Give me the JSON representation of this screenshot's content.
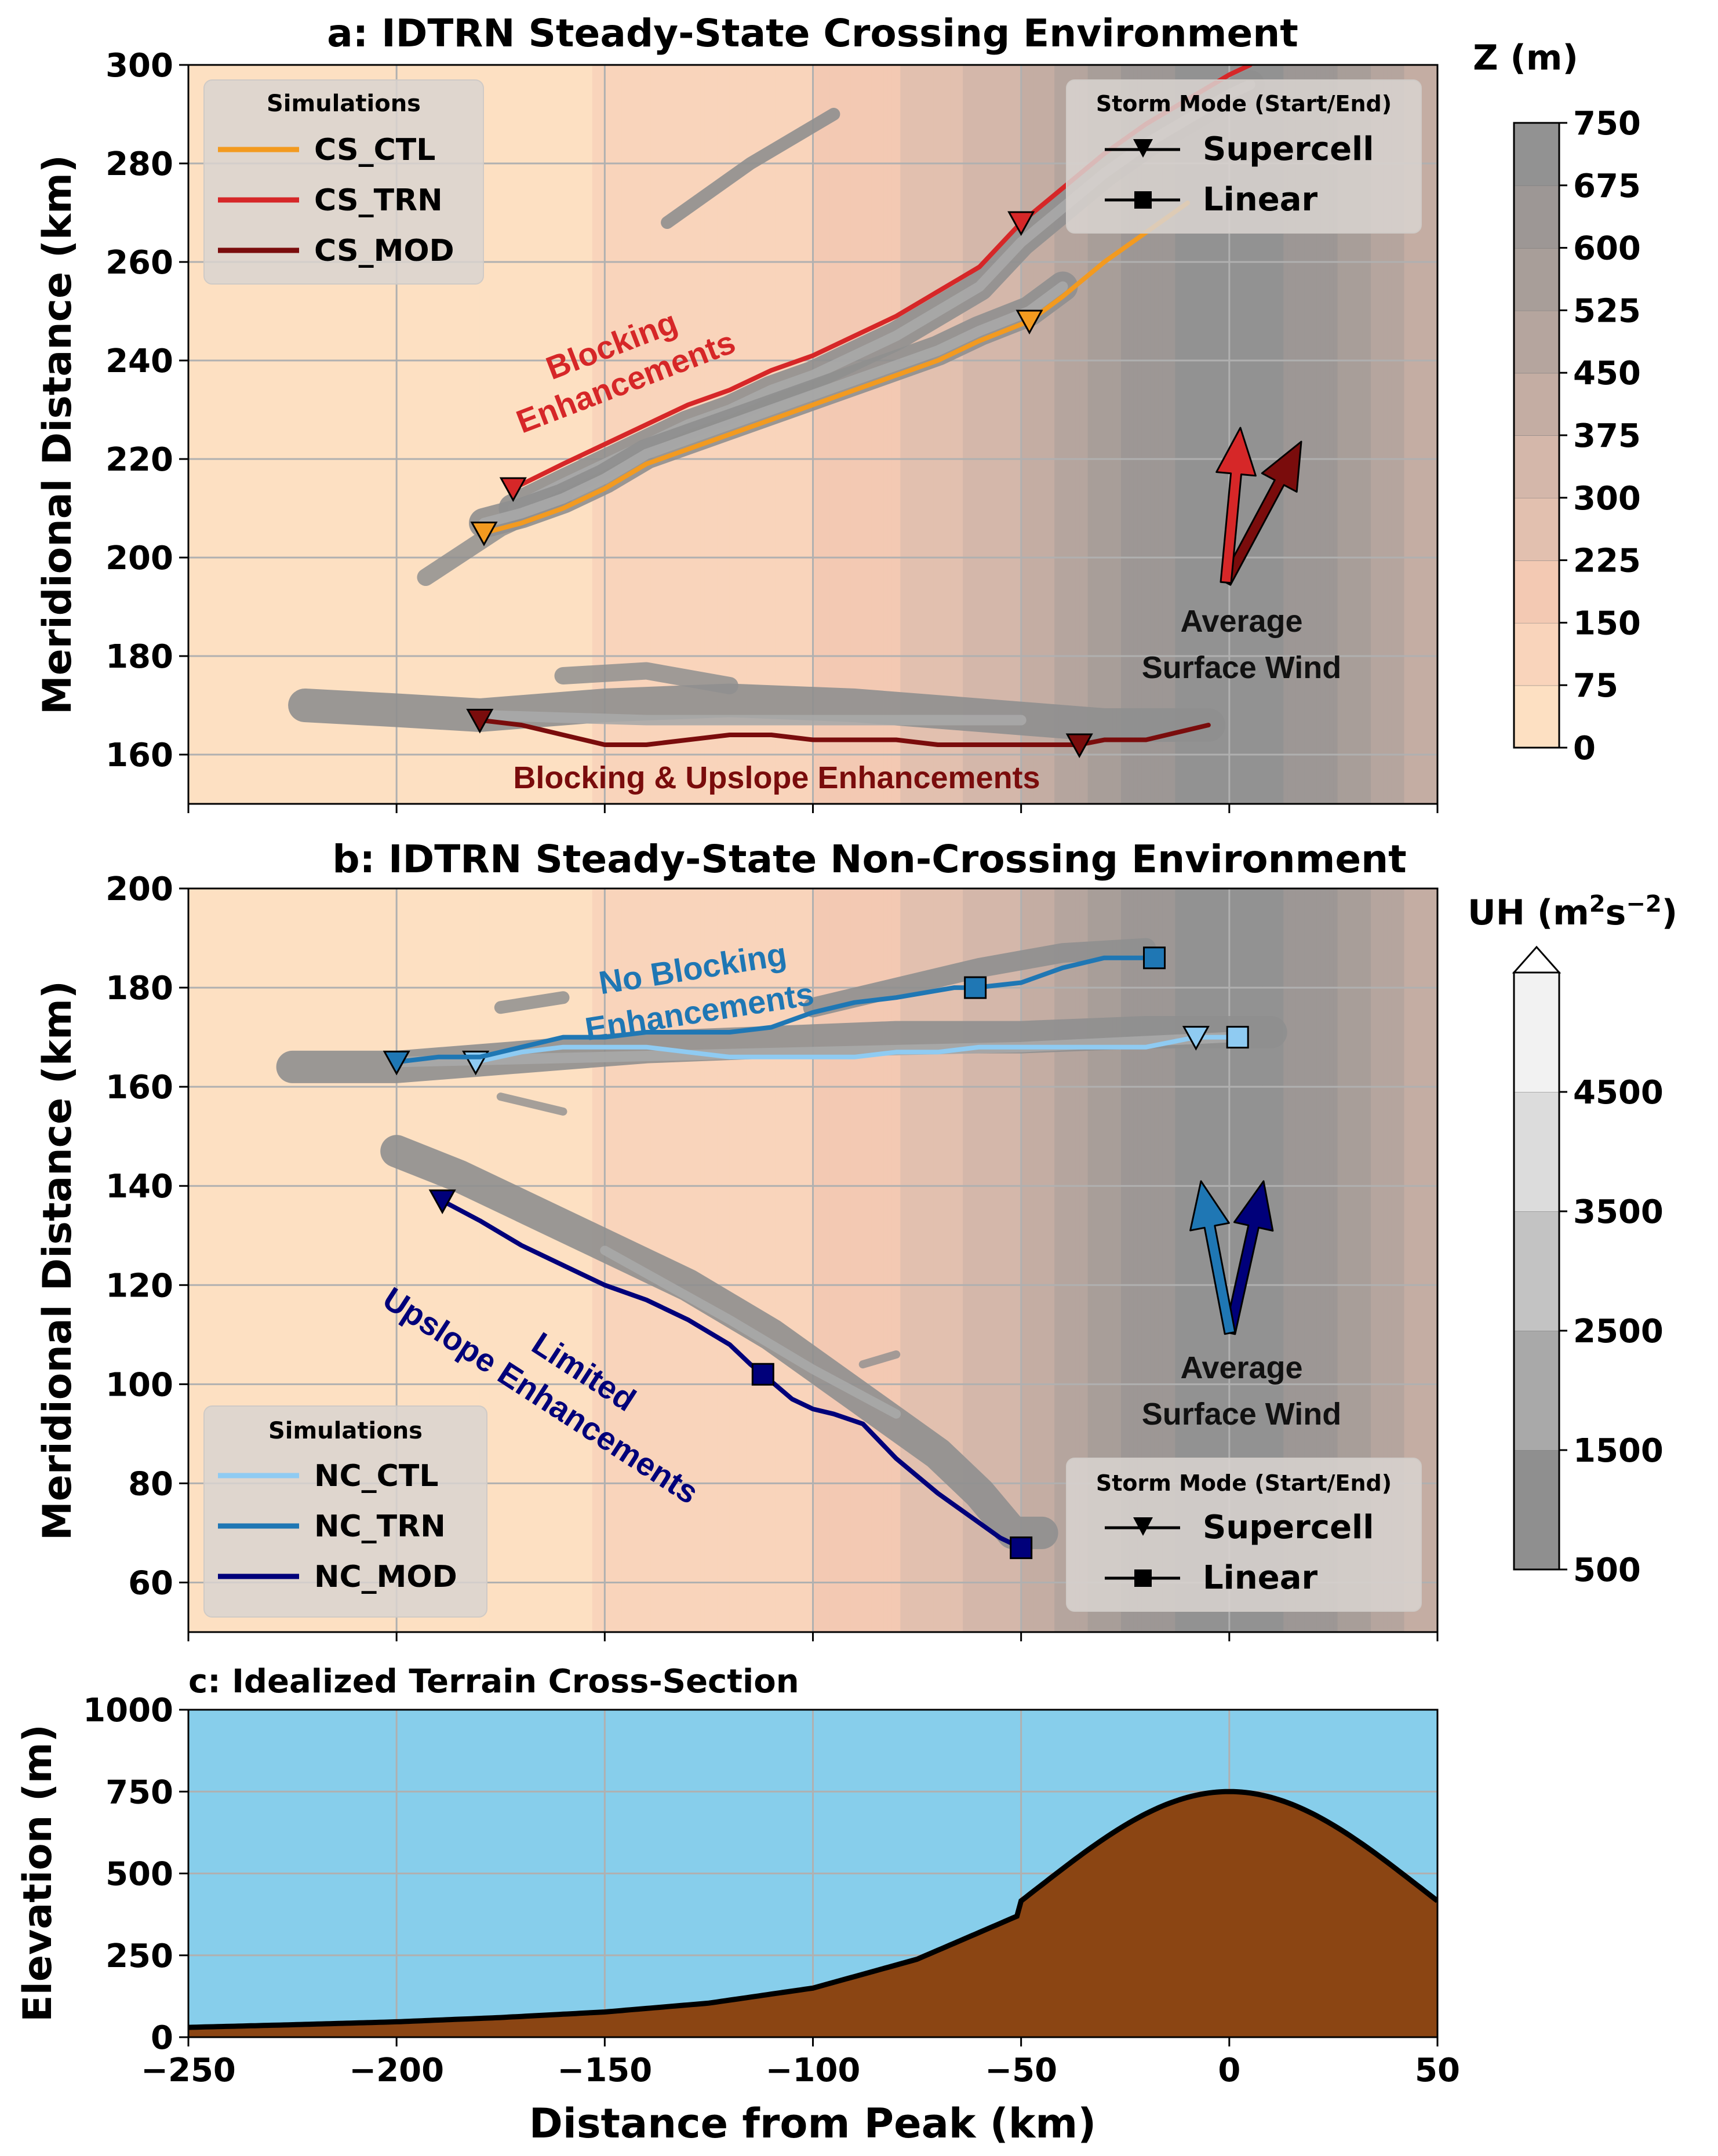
{
  "figure": {
    "xlabel": "Distance from Peak (km)",
    "xticks": [
      "−250",
      "−200",
      "−150",
      "−100",
      "−50",
      "0",
      "50"
    ]
  },
  "colors": {
    "terrain_ramp": [
      "#fde0c2",
      "#f9d4bb",
      "#f3c9b3",
      "#e2c0af",
      "#d4b7aa",
      "#c4ada3",
      "#b5a59e",
      "#a89e99",
      "#9d9795",
      "#929292"
    ],
    "uh_ramp": [
      "#8f8f8f",
      "#a9a9a9",
      "#c3c3c3",
      "#dcdcdc",
      "#f2f2f2"
    ],
    "CS_CTL": "#f39a1f",
    "CS_TRN": "#d62728",
    "CS_MOD": "#7a0c0c",
    "NC_CTL": "#8fcbf2",
    "NC_TRN": "#1f77b4",
    "NC_MOD": "#00007a",
    "sky": "#87ceeb",
    "ground": "#8b4513"
  },
  "panels": {
    "a": {
      "title": "a: IDTRN Steady-State Crossing Environment",
      "ylabel": "Meridional Distance (km)",
      "yticks": [
        "160",
        "180",
        "200",
        "220",
        "240",
        "260",
        "280",
        "300"
      ],
      "legend_sim_title": "Simulations",
      "legend_sim": [
        "CS_CTL",
        "CS_TRN",
        "CS_MOD"
      ],
      "legend_mode_title": "Storm Mode (Start/End)",
      "legend_mode": [
        "Supercell",
        "Linear"
      ],
      "wind_label_1": "Average",
      "wind_label_2": "Surface Wind",
      "annotation_blocking_1": "Blocking",
      "annotation_blocking_2": "Enhancements",
      "annotation_bottom": "Blocking & Upslope Enhancements"
    },
    "b": {
      "title": "b: IDTRN Steady-State Non-Crossing Environment",
      "ylabel": "Meridional Distance (km)",
      "yticks": [
        "60",
        "80",
        "100",
        "120",
        "140",
        "160",
        "180",
        "200"
      ],
      "legend_sim_title": "Simulations",
      "legend_sim": [
        "NC_CTL",
        "NC_TRN",
        "NC_MOD"
      ],
      "legend_mode_title": "Storm Mode (Start/End)",
      "legend_mode": [
        "Supercell",
        "Linear"
      ],
      "wind_label_1": "Average",
      "wind_label_2": "Surface Wind",
      "annotation_top_1": "No Blocking",
      "annotation_top_2": "Enhancements",
      "annotation_bottom_1": "Limited",
      "annotation_bottom_2": "Upslope Enhancements"
    },
    "c": {
      "title": "c: Idealized Terrain Cross-Section",
      "ylabel": "Elevation (m)",
      "yticks": [
        "0",
        "250",
        "500",
        "750",
        "1000"
      ]
    }
  },
  "colorbars": {
    "terrain": {
      "label": "Z (m)",
      "ticks": [
        "0",
        "75",
        "150",
        "225",
        "300",
        "375",
        "450",
        "525",
        "600",
        "675",
        "750"
      ]
    },
    "uh": {
      "label": "UH (m",
      "label_sup1": "2",
      "label_mid": "s",
      "label_sup2": "−2",
      "label_end": ")",
      "ticks": [
        "500",
        "1500",
        "2500",
        "3500",
        "4500"
      ]
    }
  },
  "chart_data": [
    {
      "type": "line",
      "title": "a: IDTRN Steady-State Crossing Environment",
      "xlabel": "Distance from Peak (km)",
      "ylabel": "Meridional Distance (km)",
      "xlim": [
        -250,
        50
      ],
      "ylim": [
        150,
        300
      ],
      "grid": true,
      "legend": "top-left",
      "background": "terrain height Z (m), 0-750",
      "series": [
        {
          "name": "CS_CTL",
          "x": [
            -179,
            -170,
            -160,
            -150,
            -140,
            -130,
            -120,
            -110,
            -100,
            -90,
            -80,
            -70,
            -60,
            -48,
            -40,
            -30,
            -20,
            -10
          ],
          "y": [
            205,
            207,
            210,
            214,
            219,
            222,
            225,
            228,
            231,
            234,
            237,
            240,
            244,
            248,
            253,
            260,
            266,
            272
          ],
          "start": {
            "mode": "Supercell",
            "x": -179,
            "y": 205
          },
          "change": {
            "mode": "Supercell",
            "x": -48,
            "y": 248
          }
        },
        {
          "name": "CS_TRN",
          "x": [
            -172,
            -160,
            -150,
            -140,
            -130,
            -120,
            -110,
            -100,
            -90,
            -80,
            -70,
            -60,
            -50,
            -40,
            -30,
            -20,
            -10,
            0,
            5
          ],
          "y": [
            214,
            219,
            223,
            227,
            231,
            234,
            238,
            241,
            245,
            249,
            254,
            259,
            268,
            275,
            282,
            288,
            293,
            298,
            300
          ],
          "start": {
            "mode": "Supercell",
            "x": -172,
            "y": 214
          },
          "change": {
            "mode": "Supercell",
            "x": -50,
            "y": 268
          }
        },
        {
          "name": "CS_MOD",
          "x": [
            -180,
            -170,
            -160,
            -150,
            -140,
            -130,
            -120,
            -110,
            -100,
            -90,
            -80,
            -70,
            -60,
            -50,
            -40,
            -36,
            -30,
            -20,
            -10,
            -5
          ],
          "y": [
            167,
            166,
            164,
            162,
            162,
            163,
            164,
            164,
            163,
            163,
            163,
            162,
            162,
            162,
            162,
            162,
            163,
            163,
            165,
            166
          ],
          "start": {
            "mode": "Supercell",
            "x": -180,
            "y": 167
          },
          "change": {
            "mode": "Supercell",
            "x": -36,
            "y": 162
          }
        }
      ],
      "annotations": [
        "Blocking Enhancements",
        "Blocking & Upslope Enhancements",
        "Average Surface Wind"
      ]
    },
    {
      "type": "line",
      "title": "b: IDTRN Steady-State Non-Crossing Environment",
      "xlabel": "Distance from Peak (km)",
      "ylabel": "Meridional Distance (km)",
      "xlim": [
        -250,
        50
      ],
      "ylim": [
        50,
        200
      ],
      "grid": true,
      "legend": "bottom-left",
      "series": [
        {
          "name": "NC_CTL",
          "x": [
            -181,
            -170,
            -160,
            -150,
            -140,
            -130,
            -120,
            -110,
            -100,
            -90,
            -80,
            -70,
            -60,
            -50,
            -40,
            -30,
            -20,
            -8,
            -5,
            2
          ],
          "y": [
            165,
            167,
            168,
            168,
            168,
            167,
            166,
            166,
            166,
            166,
            167,
            167,
            168,
            168,
            168,
            168,
            168,
            170,
            170,
            170
          ],
          "start": {
            "mode": "Supercell",
            "x": -181,
            "y": 165
          },
          "change": {
            "mode": "Supercell",
            "x": -8,
            "y": 170
          },
          "end": {
            "mode": "Linear",
            "x": 2,
            "y": 170
          }
        },
        {
          "name": "NC_TRN",
          "x": [
            -200,
            -190,
            -180,
            -170,
            -160,
            -150,
            -140,
            -130,
            -120,
            -110,
            -100,
            -90,
            -80,
            -66,
            -61,
            -50,
            -40,
            -30,
            -18
          ],
          "y": [
            165,
            166,
            166,
            168,
            170,
            170,
            171,
            171,
            171,
            172,
            175,
            177,
            178,
            180,
            180,
            181,
            184,
            186,
            186
          ],
          "start": {
            "mode": "Supercell",
            "x": -200,
            "y": 165
          },
          "change": {
            "mode": "Linear",
            "x": -61,
            "y": 180
          },
          "end": {
            "mode": "Linear",
            "x": -18,
            "y": 186
          }
        },
        {
          "name": "NC_MOD",
          "x": [
            -189,
            -180,
            -170,
            -160,
            -150,
            -140,
            -130,
            -120,
            -115,
            -112,
            -105,
            -100,
            -95,
            -88,
            -80,
            -70,
            -60,
            -55,
            -50
          ],
          "y": [
            137,
            133,
            128,
            124,
            120,
            117,
            113,
            108,
            104,
            102,
            97,
            95,
            94,
            92,
            85,
            78,
            72,
            69,
            67
          ],
          "start": {
            "mode": "Supercell",
            "x": -189,
            "y": 137
          },
          "change": {
            "mode": "Linear",
            "x": -112,
            "y": 102
          },
          "end": {
            "mode": "Linear",
            "x": -50,
            "y": 67
          }
        }
      ],
      "annotations": [
        "No Blocking Enhancements",
        "Limited Upslope Enhancements",
        "Average Surface Wind"
      ]
    },
    {
      "type": "area",
      "title": "c: Idealized Terrain Cross-Section",
      "xlabel": "Distance from Peak (km)",
      "ylabel": "Elevation (m)",
      "xlim": [
        -250,
        50
      ],
      "ylim": [
        0,
        1000
      ],
      "grid": true,
      "series": [
        {
          "name": "",
          "x": [
            -250,
            -225,
            -200,
            -175,
            -150,
            -125,
            -100,
            -75,
            -50,
            -25,
            0,
            25,
            50
          ],
          "y": [
            30,
            38,
            47,
            60,
            77,
            104,
            150,
            238,
            375,
            610,
            750,
            610,
            375
          ]
        }
      ]
    }
  ]
}
